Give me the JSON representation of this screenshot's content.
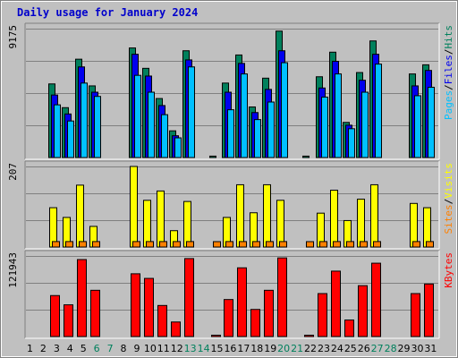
{
  "chart_data": {
    "type": "bar",
    "title": "Daily usage for January 2024",
    "colors": {
      "background": "#c0c0c0",
      "page_bg": "#ffffff",
      "title": "#0000cc",
      "grid": "#808080",
      "hits": "#00805c",
      "files": "#0000ee",
      "pages": "#00c0ff",
      "visits": "#ffff00",
      "sites": "#ff8000",
      "kbytes": "#ff0000",
      "day_weekday": "#000000",
      "day_weekend": "#00805c"
    },
    "day_labels": [
      "1",
      "2",
      "3",
      "4",
      "5",
      "6",
      "7",
      "8",
      "9",
      "10",
      "11",
      "12",
      "13",
      "14",
      "15",
      "16",
      "17",
      "18",
      "19",
      "20",
      "21",
      "22",
      "23",
      "24",
      "25",
      "26",
      "27",
      "28",
      "29",
      "30",
      "31"
    ],
    "weekend_days": [
      6,
      7,
      13,
      14,
      20,
      21,
      27,
      28
    ],
    "panels": [
      {
        "name": "hits-files-pages",
        "axis_max_label": "9175",
        "ymax": 9175,
        "legend": [
          {
            "label": "Pages",
            "color": "#00c0ff"
          },
          {
            "label": "/",
            "color": "#000000"
          },
          {
            "label": "Files",
            "color": "#0000ee"
          },
          {
            "label": "/",
            "color": "#000000"
          },
          {
            "label": "Hits",
            "color": "#00805c"
          }
        ],
        "series": [
          {
            "name": "Hits",
            "color": "#00805c",
            "values": [
              0,
              0,
              5240,
              3550,
              7000,
              5100,
              0,
              0,
              7800,
              6350,
              4200,
              1900,
              7600,
              0,
              100,
              5300,
              7300,
              3600,
              5650,
              9000,
              0,
              100,
              5750,
              7500,
              2500,
              6050,
              8300,
              0,
              0,
              5950,
              6600
            ]
          },
          {
            "name": "Files",
            "color": "#0000ee",
            "values": [
              0,
              0,
              4450,
              3100,
              6450,
              4650,
              0,
              0,
              7350,
              5800,
              3700,
              1550,
              6950,
              0,
              0,
              4650,
              6700,
              3200,
              4850,
              7600,
              0,
              0,
              4950,
              6850,
              2300,
              5500,
              7350,
              0,
              0,
              5100,
              6200
            ]
          },
          {
            "name": "Pages",
            "color": "#00c0ff",
            "values": [
              0,
              0,
              3750,
              2600,
              5300,
              4350,
              0,
              0,
              5850,
              4650,
              3050,
              1400,
              6450,
              0,
              0,
              3400,
              5950,
              2700,
              3950,
              6750,
              0,
              0,
              4300,
              5950,
              2050,
              4650,
              6650,
              0,
              0,
              4400,
              5000
            ]
          }
        ]
      },
      {
        "name": "visits-sites",
        "axis_max_label": "207",
        "ymax": 207,
        "legend": [
          {
            "label": "Sites",
            "color": "#ff8000"
          },
          {
            "label": "/",
            "color": "#000000"
          },
          {
            "label": "Visits",
            "color": "#ffff00"
          }
        ],
        "series": [
          {
            "name": "Visits",
            "color": "#ffff00",
            "values": [
              0,
              0,
              101,
              76,
              159,
              53,
              0,
              0,
              207,
              120,
              144,
              42,
              117,
              0,
              0,
              76,
              160,
              88,
              160,
              120,
              0,
              0,
              87,
              146,
              68,
              123,
              160,
              0,
              0,
              112,
              101
            ]
          },
          {
            "name": "Sites",
            "color": "#ff8000",
            "values": [
              0,
              0,
              14,
              14,
              14,
              14,
              0,
              0,
              14,
              14,
              14,
              14,
              14,
              0,
              4,
              14,
              14,
              14,
              14,
              14,
              0,
              4,
              14,
              14,
              14,
              14,
              14,
              0,
              0,
              14,
              14
            ]
          }
        ]
      },
      {
        "name": "kbytes",
        "axis_max_label": "121943",
        "ymax": 121943,
        "legend": [
          {
            "label": "KBytes",
            "color": "#ff0000"
          }
        ],
        "series": [
          {
            "name": "KBytes",
            "color": "#ff0000",
            "values": [
              0,
              0,
              62000,
              48000,
              116500,
              70000,
              0,
              0,
              95000,
              88000,
              47000,
              22000,
              118000,
              0,
              2000,
              56000,
              104000,
              41000,
              70000,
              119000,
              0,
              2000,
              65000,
              99000,
              25000,
              77000,
              111000,
              0,
              0,
              65000,
              79500
            ]
          }
        ]
      }
    ]
  }
}
